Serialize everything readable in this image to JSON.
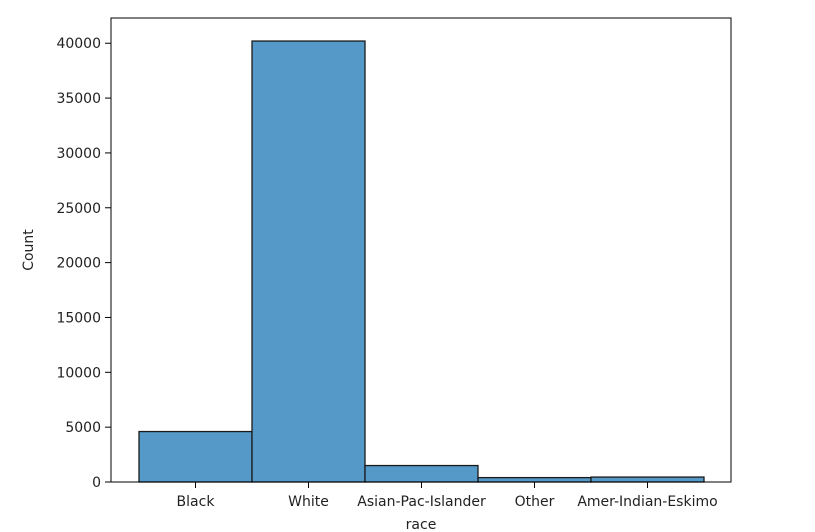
{
  "chart_data": {
    "type": "bar",
    "title": "",
    "xlabel": "race",
    "ylabel": "Count",
    "categories": [
      "Black",
      "White",
      "Asian-Pac-Islander",
      "Other",
      "Amer-Indian-Eskimo"
    ],
    "values": [
      4600,
      40200,
      1500,
      400,
      450
    ],
    "ylim": [
      0,
      42300
    ],
    "yticks": [
      0,
      5000,
      10000,
      15000,
      20000,
      25000,
      30000,
      35000,
      40000
    ],
    "grid": false,
    "legend": "none",
    "bar_color": "#5499c7",
    "edge_color": "#1a1a1a"
  }
}
